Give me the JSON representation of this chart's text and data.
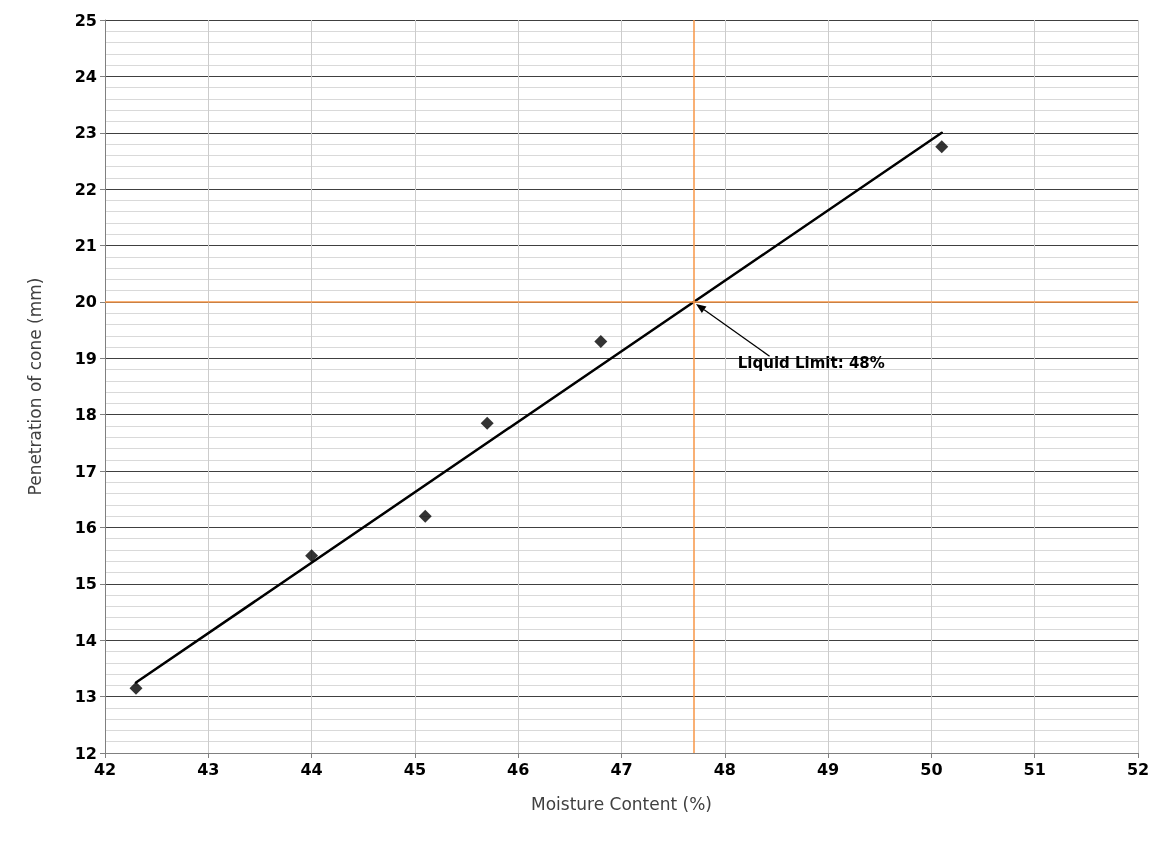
{
  "chart_data": {
    "type": "scatter",
    "xlabel": "Moisture Content (%)",
    "ylabel": "Penetration of cone (mm)",
    "series": [
      {
        "color": "#000000",
        "marker": "diamond",
        "x": [
          42.3,
          44.0,
          45.1,
          45.7,
          46.8,
          50.1
        ],
        "values": [
          13.15,
          15.5,
          16.2,
          17.85,
          19.3,
          22.75
        ]
      },
      {
        "type": "line",
        "color": "#000000",
        "marker": "none",
        "line_style": "solid",
        "x": [
          42.3,
          50.1
        ],
        "values": [
          13.25,
          23.0
        ]
      }
    ],
    "xlim": [
      42,
      52
    ],
    "xticks": [
      42,
      43,
      44,
      45,
      46,
      47,
      48,
      49,
      50,
      51,
      52
    ],
    "ylim": [
      12,
      25
    ],
    "yticks": [
      12,
      13,
      14,
      15,
      16,
      17,
      18,
      19,
      20,
      21,
      22,
      23,
      24,
      25
    ],
    "grid": true,
    "ref_lines": [
      {
        "axis": "x",
        "value": 47.7,
        "color": "#f79646"
      },
      {
        "axis": "y",
        "value": 20,
        "color": "#f79646"
      }
    ],
    "annotations": [
      "Liquid Limit: 48%"
    ]
  }
}
